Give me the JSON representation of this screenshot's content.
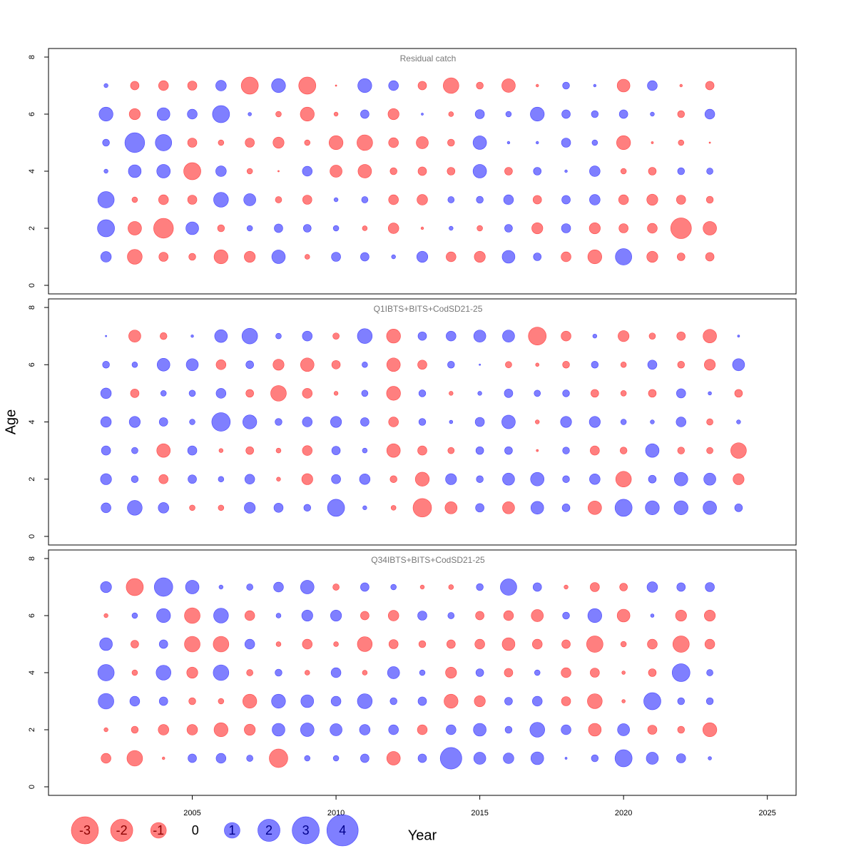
{
  "chart_data": [
    {
      "type": "bubble",
      "title": "Residual catch",
      "x": [
        2002,
        2003,
        2004,
        2005,
        2006,
        2007,
        2008,
        2009,
        2010,
        2011,
        2012,
        2013,
        2014,
        2015,
        2016,
        2017,
        2018,
        2019,
        2020,
        2021,
        2022,
        2023
      ],
      "y": [
        1,
        2,
        3,
        4,
        5,
        6,
        7
      ],
      "values": [
        [
          0.46,
          -0.9,
          -0.35,
          -0.2,
          -0.8,
          -0.5,
          0.75,
          -0.1,
          0.35,
          0.3,
          0.07,
          0.5,
          -0.4,
          -0.5,
          0.67,
          0.25,
          -0.4,
          -0.8,
          1.1,
          -0.5,
          -0.25,
          -0.3
        ],
        [
          1.2,
          -0.75,
          -1.6,
          0.67,
          -0.2,
          0.13,
          0.3,
          0.25,
          0.13,
          -0.1,
          -0.46,
          -0.03,
          0.07,
          -0.13,
          0.25,
          -0.5,
          0.35,
          -0.5,
          -0.35,
          -0.4,
          -1.75,
          -0.75
        ],
        [
          1.1,
          -0.13,
          -0.4,
          -0.35,
          0.9,
          0.6,
          -0.17,
          -0.35,
          0.07,
          0.17,
          -0.4,
          -0.46,
          0.17,
          0.2,
          0.4,
          -0.3,
          0.3,
          0.46,
          -0.4,
          -0.5,
          -0.35,
          -0.2
        ],
        [
          0.07,
          0.67,
          0.75,
          -1.2,
          0.46,
          -0.13,
          -0.01,
          0.4,
          -0.6,
          -0.75,
          -0.2,
          -0.3,
          -0.25,
          0.75,
          -0.25,
          0.25,
          0.03,
          0.46,
          -0.13,
          -0.25,
          0.2,
          0.17
        ],
        [
          0.2,
          1.6,
          1.1,
          -0.35,
          -0.13,
          -0.35,
          -0.5,
          -0.13,
          -0.8,
          -1.0,
          -0.4,
          -0.6,
          -0.2,
          0.75,
          0.03,
          0.03,
          0.35,
          0.13,
          -0.8,
          -0.02,
          -0.13,
          -0.01
        ],
        [
          0.8,
          -0.5,
          0.67,
          0.4,
          1.2,
          0.05,
          -0.13,
          -0.8,
          -0.07,
          0.3,
          -0.5,
          0.02,
          -0.1,
          0.35,
          0.13,
          0.8,
          0.3,
          0.2,
          0.3,
          0.07,
          -0.2,
          0.4
        ],
        [
          0.07,
          -0.3,
          -0.4,
          -0.35,
          0.46,
          -1.2,
          0.8,
          -1.2,
          -0.01,
          0.8,
          0.4,
          -0.3,
          -1.0,
          -0.2,
          -0.75,
          -0.03,
          0.2,
          0.03,
          -0.67,
          0.4,
          -0.03,
          -0.3
        ]
      ],
      "xlim": [
        2000,
        2026
      ],
      "ylim": [
        -0.3,
        8.3
      ],
      "yticks": [
        0,
        2,
        4,
        6,
        8
      ],
      "colors": {
        "positive": "#0000ff",
        "negative": "#ff0000"
      }
    },
    {
      "type": "bubble",
      "title": "Q1IBTS+BITS+CodSD21-25",
      "ylabel": "Age",
      "x": [
        2002,
        2003,
        2004,
        2005,
        2006,
        2007,
        2008,
        2009,
        2010,
        2011,
        2012,
        2013,
        2014,
        2015,
        2016,
        2017,
        2018,
        2019,
        2020,
        2021,
        2022,
        2023,
        2024
      ],
      "y": [
        1,
        2,
        3,
        4,
        5,
        6,
        7
      ],
      "values": [
        [
          0.4,
          0.9,
          0.46,
          -0.13,
          -0.13,
          0.5,
          0.35,
          0.2,
          1.2,
          0.07,
          -0.1,
          -1.4,
          -0.6,
          0.3,
          -0.6,
          0.67,
          0.25,
          -0.75,
          1.2,
          0.8,
          0.8,
          0.75,
          0.25
        ],
        [
          0.5,
          0.2,
          -0.35,
          0.3,
          0.13,
          0.4,
          -0.07,
          -0.5,
          0.35,
          0.46,
          -0.2,
          -0.8,
          0.5,
          0.2,
          0.6,
          0.75,
          0.2,
          0.46,
          -1.0,
          0.25,
          0.75,
          0.6,
          -0.5
        ],
        [
          0.35,
          0.17,
          -0.75,
          0.35,
          -0.07,
          -0.25,
          -0.1,
          -0.4,
          0.3,
          0.1,
          -0.75,
          -0.35,
          -0.17,
          0.25,
          0.25,
          -0.02,
          0.2,
          -0.35,
          -0.2,
          0.75,
          -0.2,
          -0.17,
          -1.0
        ],
        [
          0.46,
          0.5,
          0.3,
          0.13,
          1.4,
          0.8,
          0.2,
          0.4,
          0.5,
          0.3,
          -0.4,
          0.2,
          0.05,
          0.35,
          0.75,
          -0.07,
          0.5,
          0.5,
          0.13,
          0.07,
          0.4,
          -0.17,
          0.07
        ],
        [
          0.46,
          -0.3,
          0.13,
          0.17,
          0.4,
          -0.25,
          -1.0,
          -0.4,
          -0.07,
          0.17,
          -0.8,
          0.2,
          -0.07,
          0.07,
          0.3,
          0.17,
          0.2,
          -0.25,
          -0.13,
          -0.25,
          0.35,
          0.05,
          -0.25
        ],
        [
          0.2,
          0.13,
          0.67,
          0.6,
          -0.4,
          0.25,
          -0.5,
          -0.75,
          -0.3,
          0.13,
          -0.75,
          -0.35,
          0.2,
          0.01,
          -0.17,
          -0.05,
          -0.2,
          0.2,
          -0.13,
          0.35,
          -0.2,
          -0.5,
          0.6
        ],
        [
          0.01,
          -0.6,
          -0.2,
          0.03,
          0.67,
          1.0,
          0.13,
          0.4,
          -0.17,
          0.9,
          -0.8,
          0.3,
          0.4,
          0.6,
          0.6,
          -1.3,
          -0.4,
          0.07,
          -0.5,
          -0.17,
          -0.3,
          -0.75,
          0.02
        ]
      ],
      "xlim": [
        2000,
        2026
      ],
      "ylim": [
        -0.3,
        8.3
      ],
      "yticks": [
        0,
        2,
        4,
        6,
        8
      ],
      "colors": {
        "positive": "#0000ff",
        "negative": "#ff0000"
      }
    },
    {
      "type": "bubble",
      "title": "Q34IBTS+BITS+CodSD21-25",
      "xlabel": "Year",
      "x": [
        2002,
        2003,
        2004,
        2005,
        2006,
        2007,
        2008,
        2009,
        2010,
        2011,
        2012,
        2013,
        2014,
        2015,
        2016,
        2017,
        2018,
        2019,
        2020,
        2021,
        2022,
        2023
      ],
      "y": [
        1,
        2,
        3,
        4,
        5,
        6,
        7
      ],
      "values": [
        [
          -0.4,
          -1.0,
          -0.03,
          0.3,
          0.4,
          0.17,
          -1.4,
          0.13,
          0.13,
          0.3,
          -0.75,
          0.3,
          1.9,
          0.6,
          0.46,
          0.67,
          0.02,
          0.2,
          1.2,
          0.6,
          0.35,
          0.05
        ],
        [
          -0.07,
          -0.2,
          -0.46,
          -0.46,
          -0.8,
          -0.5,
          0.67,
          0.75,
          0.6,
          0.46,
          0.4,
          -0.4,
          0.4,
          0.67,
          0.2,
          0.9,
          0.4,
          -0.67,
          0.6,
          -0.35,
          -0.2,
          -0.8
        ],
        [
          1.0,
          0.4,
          0.3,
          -0.2,
          -0.13,
          -0.8,
          0.8,
          0.67,
          0.4,
          0.9,
          0.2,
          0.3,
          -0.8,
          -0.5,
          0.25,
          0.4,
          -0.35,
          -0.9,
          -0.05,
          1.2,
          0.2,
          0.2
        ],
        [
          1.1,
          -0.13,
          0.9,
          -0.5,
          1.0,
          -0.17,
          0.2,
          -0.1,
          0.4,
          -0.1,
          0.6,
          0.13,
          -0.5,
          0.25,
          -0.3,
          0.13,
          -0.4,
          -0.35,
          -0.05,
          -0.25,
          1.3,
          0.17
        ],
        [
          0.67,
          -0.25,
          0.3,
          -1.0,
          -1.0,
          0.4,
          -0.1,
          -0.4,
          -0.1,
          -0.9,
          -0.35,
          -0.2,
          -0.3,
          -0.4,
          -0.67,
          -0.4,
          -0.3,
          -1.1,
          -0.13,
          -0.4,
          -1.1,
          -0.4
        ],
        [
          -0.07,
          0.13,
          0.8,
          -1.0,
          0.9,
          -0.4,
          0.1,
          0.5,
          0.5,
          -0.3,
          -0.46,
          0.35,
          0.17,
          -0.3,
          -0.4,
          -0.6,
          0.2,
          0.8,
          -0.67,
          0.05,
          -0.5,
          -0.5
        ],
        [
          0.5,
          -1.2,
          1.4,
          0.75,
          0.07,
          0.17,
          0.4,
          0.75,
          -0.17,
          0.3,
          0.13,
          -0.07,
          -0.1,
          0.2,
          1.1,
          0.3,
          -0.07,
          -0.35,
          -0.25,
          0.46,
          0.3,
          0.35
        ]
      ],
      "xlim": [
        2000,
        2026
      ],
      "ylim": [
        -0.3,
        8.3
      ],
      "yticks": [
        0,
        2,
        4,
        6,
        8
      ],
      "xticks": [
        2005,
        2010,
        2015,
        2020,
        2025
      ],
      "legend": [
        -3,
        -2,
        -1,
        0,
        1,
        2,
        3,
        4
      ],
      "colors": {
        "positive": "#0000ff",
        "negative": "#ff0000"
      }
    }
  ]
}
